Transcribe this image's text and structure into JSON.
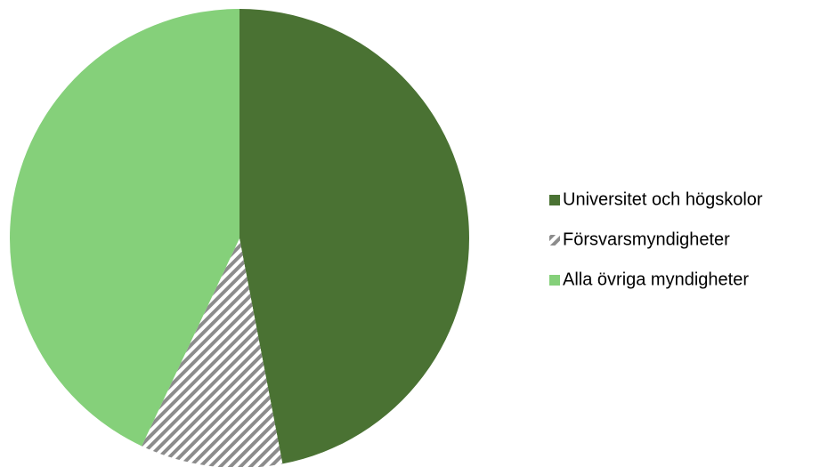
{
  "chart_data": {
    "type": "pie",
    "categories": [
      "Universitet och högskolor",
      "Försvarsmyndigheter",
      "Alla övriga myndigheter"
    ],
    "values": [
      47,
      10,
      43
    ],
    "colors": [
      "#4a7233",
      "#8c8c8c",
      "#85d07a"
    ],
    "hatched": [
      false,
      true,
      false
    ],
    "legend": "right"
  }
}
